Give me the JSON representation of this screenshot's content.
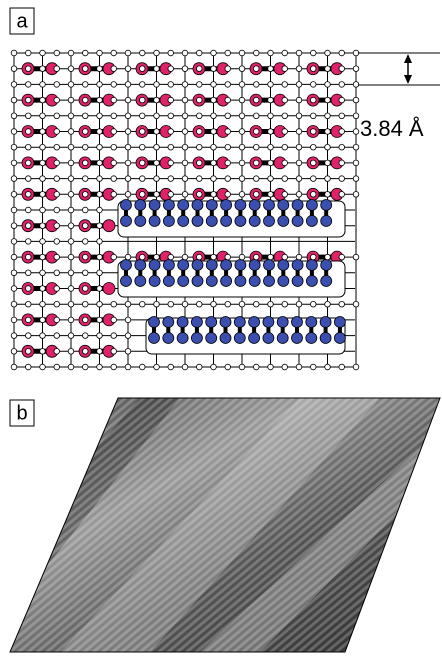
{
  "panels": [
    {
      "label": "a"
    },
    {
      "label": "b"
    }
  ],
  "annotation": "3.84 Å"
}
